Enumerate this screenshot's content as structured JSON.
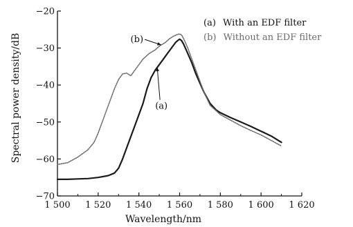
{
  "chart_data": {
    "type": "line",
    "title": "",
    "xlabel": "Wavelength/nm",
    "ylabel": "Spectral power density/dB",
    "xlim": [
      1500,
      1620
    ],
    "ylim": [
      -70,
      -20
    ],
    "xticks": [
      1500,
      1520,
      1540,
      1560,
      1580,
      1600,
      1620
    ],
    "xtick_labels": [
      "1 500",
      "1 520",
      "1 540",
      "1 560",
      "1 580",
      "1 600",
      "1 620"
    ],
    "yticks": [
      -70,
      -60,
      -50,
      -40,
      -30,
      -20
    ],
    "ytick_labels": [
      "−70",
      "−60",
      "−50",
      "−40",
      "−30",
      "−20"
    ],
    "grid": false,
    "legend_position": "top-right",
    "legend": [
      {
        "marker": "(a)",
        "text": "With an EDF filter",
        "color": "#1a1a1a"
      },
      {
        "marker": "(b)",
        "text": "Without an EDF filter",
        "color": "#6a6a6a"
      }
    ],
    "series": [
      {
        "name": "With an EDF filter",
        "label": "(a)",
        "color": "#1a1a1a",
        "x": [
          1500,
          1505,
          1510,
          1515,
          1520,
          1525,
          1528,
          1530,
          1532,
          1534,
          1536,
          1538,
          1540,
          1542,
          1544,
          1546,
          1548,
          1550,
          1552,
          1554,
          1556,
          1558,
          1559,
          1560,
          1561,
          1562,
          1564,
          1566,
          1568,
          1570,
          1572,
          1575,
          1578,
          1580,
          1585,
          1590,
          1595,
          1600,
          1605,
          1610
        ],
        "y": [
          -65.5,
          -65.5,
          -65.4,
          -65.3,
          -65.0,
          -64.5,
          -63.8,
          -62.5,
          -60.0,
          -57.0,
          -54.0,
          -51.0,
          -48.0,
          -45.0,
          -41.0,
          -38.0,
          -36.0,
          -34.5,
          -33.0,
          -31.5,
          -30.0,
          -28.5,
          -28.0,
          -27.6,
          -28.0,
          -29.0,
          -31.5,
          -34.0,
          -37.0,
          -39.5,
          -42.0,
          -45.0,
          -46.8,
          -47.5,
          -48.8,
          -50.0,
          -51.2,
          -52.5,
          -53.8,
          -55.5
        ]
      },
      {
        "name": "Without an EDF filter",
        "label": "(b)",
        "color": "#6a6a6a",
        "x": [
          1500,
          1505,
          1510,
          1515,
          1518,
          1520,
          1522,
          1525,
          1528,
          1530,
          1532,
          1534,
          1536,
          1538,
          1540,
          1542,
          1545,
          1548,
          1550,
          1553,
          1555,
          1557,
          1559,
          1560,
          1561,
          1562,
          1564,
          1566,
          1568,
          1570,
          1572,
          1575,
          1578,
          1580,
          1585,
          1590,
          1595,
          1600,
          1605,
          1610
        ],
        "y": [
          -61.5,
          -61.0,
          -59.5,
          -57.5,
          -55.5,
          -53.0,
          -50.0,
          -45.5,
          -41.0,
          -38.5,
          -37.0,
          -36.8,
          -37.5,
          -36.0,
          -34.5,
          -33.0,
          -31.5,
          -30.5,
          -29.5,
          -28.5,
          -27.5,
          -26.8,
          -26.3,
          -26.2,
          -26.5,
          -27.5,
          -30.0,
          -33.0,
          -36.0,
          -39.0,
          -42.0,
          -45.5,
          -47.0,
          -48.0,
          -49.5,
          -51.0,
          -52.3,
          -53.5,
          -55.0,
          -56.5
        ]
      }
    ],
    "annotations": [
      {
        "text": "(a)",
        "target_series": 0,
        "target_x": 1549
      },
      {
        "text": "(b)",
        "target_series": 1,
        "target_x": 1551
      }
    ]
  }
}
